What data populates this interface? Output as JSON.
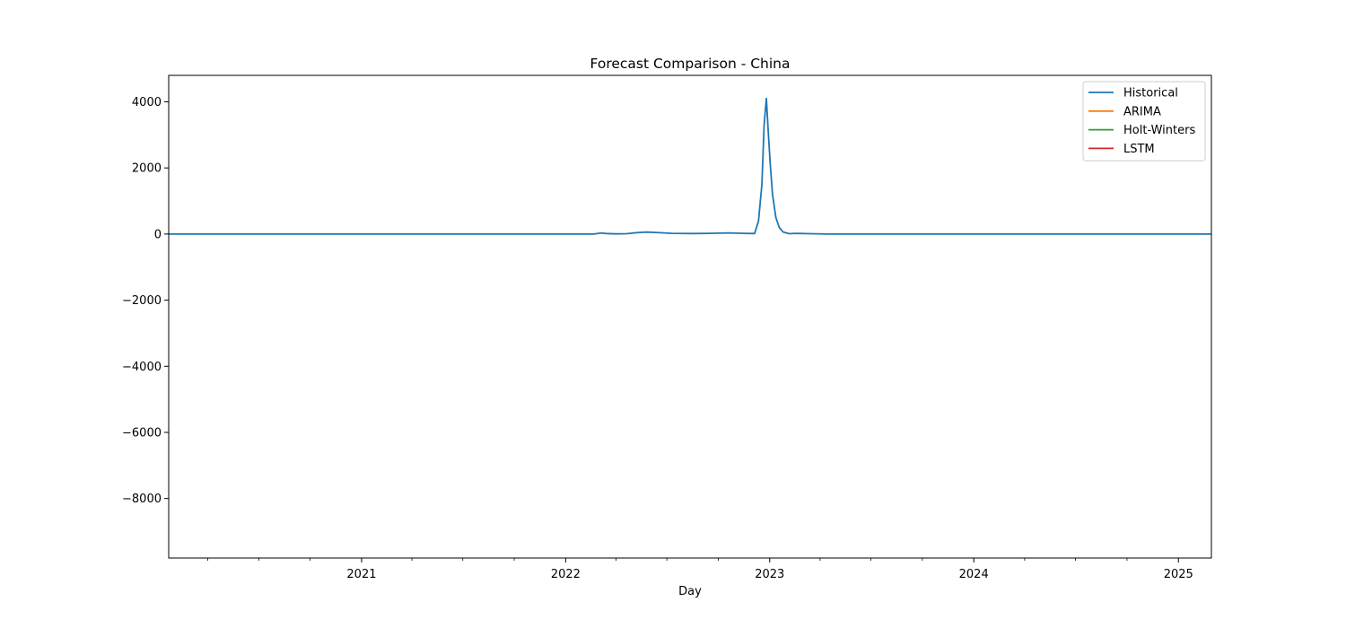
{
  "chart_data": {
    "type": "line",
    "title": "Forecast Comparison - China",
    "xlabel": "Day",
    "ylabel": "",
    "x_axis_type": "date",
    "xlim": [
      "2020-01-22",
      "2025-03-01"
    ],
    "ylim": [
      -9800,
      4800
    ],
    "x_ticks": [
      {
        "date": "2021-01-01",
        "label": "2021"
      },
      {
        "date": "2022-01-01",
        "label": "2022"
      },
      {
        "date": "2023-01-01",
        "label": "2023"
      },
      {
        "date": "2024-01-01",
        "label": "2024"
      },
      {
        "date": "2025-01-01",
        "label": "2025"
      }
    ],
    "x_minor_ticks": [
      "2020-04-01",
      "2020-07-01",
      "2020-10-01",
      "2021-04-01",
      "2021-07-01",
      "2021-10-01",
      "2022-04-01",
      "2022-07-01",
      "2022-10-01",
      "2023-04-01",
      "2023-07-01",
      "2023-10-01",
      "2024-04-01",
      "2024-07-01",
      "2024-10-01"
    ],
    "y_ticks": [
      {
        "value": 4000,
        "label": "4000"
      },
      {
        "value": 2000,
        "label": "2000"
      },
      {
        "value": 0,
        "label": "0"
      },
      {
        "value": -2000,
        "label": "−2000"
      },
      {
        "value": -4000,
        "label": "−4000"
      },
      {
        "value": -6000,
        "label": "−6000"
      },
      {
        "value": -8000,
        "label": "−8000"
      }
    ],
    "legend_position": "top-right",
    "grid": false,
    "series": [
      {
        "name": "Historical",
        "color": "#1f77b4",
        "points": [
          [
            "2020-01-22",
            0
          ],
          [
            "2021-01-01",
            0
          ],
          [
            "2022-01-01",
            0
          ],
          [
            "2022-02-20",
            0
          ],
          [
            "2022-03-05",
            30
          ],
          [
            "2022-03-15",
            15
          ],
          [
            "2022-04-01",
            5
          ],
          [
            "2022-04-20",
            10
          ],
          [
            "2022-05-10",
            45
          ],
          [
            "2022-05-25",
            60
          ],
          [
            "2022-06-15",
            45
          ],
          [
            "2022-07-10",
            20
          ],
          [
            "2022-08-15",
            15
          ],
          [
            "2022-09-15",
            20
          ],
          [
            "2022-10-20",
            35
          ],
          [
            "2022-11-15",
            20
          ],
          [
            "2022-12-05",
            15
          ],
          [
            "2022-12-12",
            400
          ],
          [
            "2022-12-18",
            1500
          ],
          [
            "2022-12-22",
            3300
          ],
          [
            "2022-12-26",
            4100
          ],
          [
            "2022-12-29",
            3200
          ],
          [
            "2023-01-02",
            2100
          ],
          [
            "2023-01-06",
            1200
          ],
          [
            "2023-01-12",
            500
          ],
          [
            "2023-01-18",
            200
          ],
          [
            "2023-01-25",
            60
          ],
          [
            "2023-02-05",
            10
          ],
          [
            "2023-02-15",
            20
          ],
          [
            "2023-03-15",
            10
          ],
          [
            "2023-04-15",
            0
          ],
          [
            "2024-01-01",
            0
          ],
          [
            "2025-03-01",
            0
          ]
        ]
      },
      {
        "name": "ARIMA",
        "color": "#ff7f0e",
        "points": []
      },
      {
        "name": "Holt-Winters",
        "color": "#2ca02c",
        "points": []
      },
      {
        "name": "LSTM",
        "color": "#d62728",
        "points": []
      }
    ]
  }
}
